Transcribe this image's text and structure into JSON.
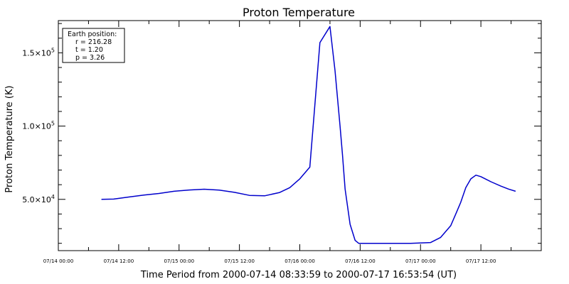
{
  "chart_data": {
    "type": "line",
    "title": "Proton Temperature",
    "xlabel": "Time Period from 2000-07-14 08:33:59 to 2000-07-17 16:53:54 (UT)",
    "ylabel": "Proton Temperature (K)",
    "x_tick_labels": [
      "07/14 00:00",
      "07/14 12:00",
      "07/15 00:00",
      "07/15 12:00",
      "07/16 00:00",
      "07/16 12:00",
      "07/17 00:00",
      "07/17 12:00"
    ],
    "x_ticks_hours": [
      0,
      12,
      24,
      36,
      48,
      60,
      72,
      84
    ],
    "xlim_hours": [
      0,
      96
    ],
    "y_ticks": [
      {
        "value": 50000,
        "mantissa": "5.0",
        "exponent": "4"
      },
      {
        "value": 100000,
        "mantissa": "1.0",
        "exponent": "5"
      },
      {
        "value": 150000,
        "mantissa": "1.5",
        "exponent": "5"
      }
    ],
    "ylim": [
      15000,
      172000
    ],
    "grid": false,
    "series": [
      {
        "color": "#0000cc",
        "x_hours": [
          8.57,
          11,
          14,
          17,
          20,
          23,
          26,
          29,
          32,
          35,
          38,
          41,
          44,
          46,
          48,
          50,
          52,
          54,
          55,
          56,
          56.5,
          57,
          58,
          59,
          59.7,
          60,
          60.5,
          61,
          62,
          63,
          64,
          66,
          70,
          74,
          76,
          78,
          79,
          80,
          81,
          82,
          83,
          84,
          86,
          88,
          89.5,
          90.9
        ],
        "y_values": [
          50000,
          50200,
          51600,
          52900,
          54000,
          55500,
          56400,
          56900,
          56300,
          54800,
          52700,
          52400,
          54700,
          58000,
          64000,
          72000,
          157000,
          168000,
          138000,
          100000,
          80000,
          57000,
          33000,
          22000,
          20000,
          20000,
          20000,
          20000,
          20000,
          20000,
          20000,
          20000,
          20000,
          20500,
          24000,
          32000,
          40000,
          48000,
          58000,
          64000,
          66500,
          65500,
          62000,
          59000,
          57000,
          55500
        ]
      }
    ],
    "legend_title": "Earth position:",
    "legend_lines": [
      "r = 216.28",
      "t = 1.20",
      "p = 3.26"
    ],
    "legend_placement": "top-left"
  }
}
